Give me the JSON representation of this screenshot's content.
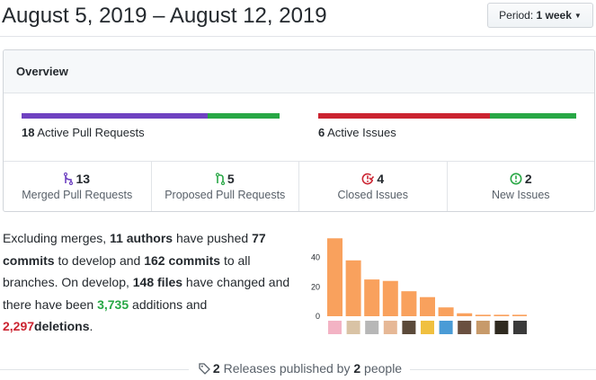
{
  "header": {
    "title": "August 5, 2019 – August 12, 2019",
    "period_label": "Period:",
    "period_value": "1 week"
  },
  "overview": {
    "heading": "Overview",
    "pull_requests": {
      "count": "18",
      "label": "Active Pull Requests",
      "bar": [
        {
          "value": 13,
          "color": "#6f42c1"
        },
        {
          "value": 5,
          "color": "#28a745"
        }
      ]
    },
    "issues": {
      "count": "6",
      "label": "Active Issues",
      "bar": [
        {
          "value": 4,
          "color": "#cb2431"
        },
        {
          "value": 2,
          "color": "#28a745"
        }
      ]
    },
    "summary": [
      {
        "count": "13",
        "label": "Merged Pull Requests",
        "icon": "git-merge-icon",
        "color": "#6f42c1"
      },
      {
        "count": "5",
        "label": "Proposed Pull Requests",
        "icon": "git-pull-request-icon",
        "color": "#28a745"
      },
      {
        "count": "4",
        "label": "Closed Issues",
        "icon": "issue-closed-icon",
        "color": "#cb2431"
      },
      {
        "count": "2",
        "label": "New Issues",
        "icon": "issue-opened-icon",
        "color": "#28a745"
      }
    ]
  },
  "commits": {
    "t1": "Excluding merges,",
    "authors": "11 authors",
    "t2": "have pushed",
    "commits_count": "77 commits",
    "t3": "to develop and",
    "all_commits": "162 commits",
    "t4": "to all branches. On develop,",
    "files": "148 files",
    "t5": "have changed and there have been",
    "additions": "3,735",
    "t6": "additions",
    "t7": "and",
    "deletions": "2,297",
    "t8": "deletions",
    "t9": "."
  },
  "chart_data": {
    "type": "bar",
    "values": [
      53,
      38,
      25,
      24,
      17,
      13,
      6,
      2,
      1,
      1,
      1
    ],
    "ylim": [
      0,
      55
    ],
    "yticks": [
      0,
      20,
      40
    ],
    "bar_color": "#f9a15d",
    "avatar_colors": [
      "#f3b3c4",
      "#d9c3a5",
      "#b7b7b7",
      "#e6b896",
      "#5b4a3a",
      "#f0c040",
      "#4a9bd6",
      "#6a5040",
      "#c79a6a",
      "#2f2a20",
      "#3a3a3a"
    ]
  },
  "releases": {
    "count": "2",
    "mid": "Releases published by",
    "people": "2",
    "tail": "people"
  }
}
